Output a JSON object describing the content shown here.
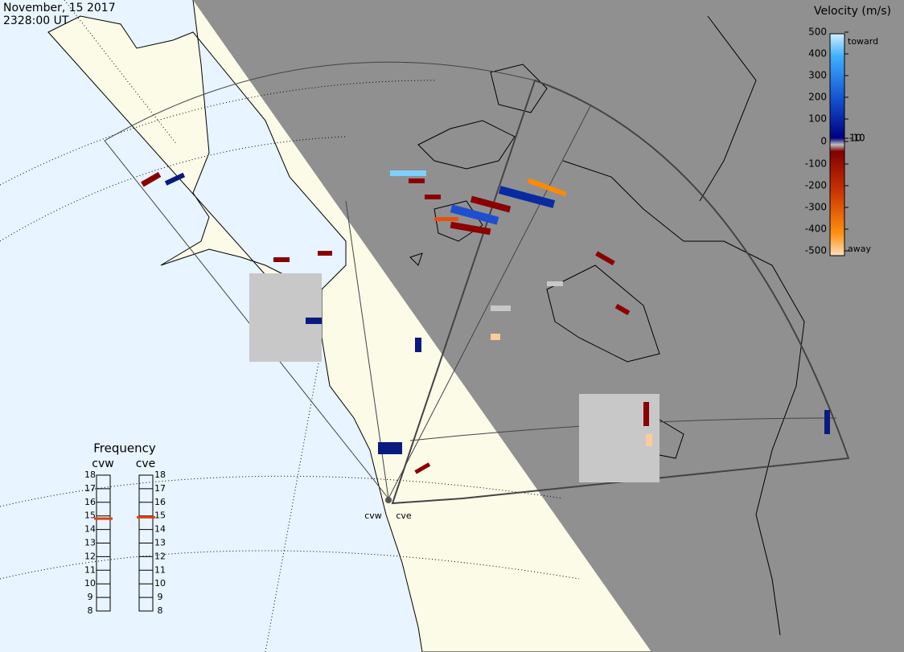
{
  "header": {
    "date": "November, 15 2017",
    "time": "2328:00 UT"
  },
  "colorbar": {
    "title": "Velocity (m/s)",
    "top_label": "toward",
    "bottom_label": "away",
    "ticks": [
      500,
      400,
      300,
      200,
      100,
      10,
      0,
      -10,
      -100,
      -200,
      -300,
      -400,
      -500
    ]
  },
  "frequency": {
    "title": "Frequency",
    "lim": [
      8,
      18
    ],
    "ticks": [
      18,
      17,
      16,
      15,
      14,
      13,
      12,
      11,
      10,
      9,
      8
    ],
    "radars": [
      {
        "name": "cvw",
        "value": 14.8
      },
      {
        "name": "cve",
        "value": 14.9
      }
    ]
  },
  "stations": [
    "cvw",
    "cve"
  ]
}
